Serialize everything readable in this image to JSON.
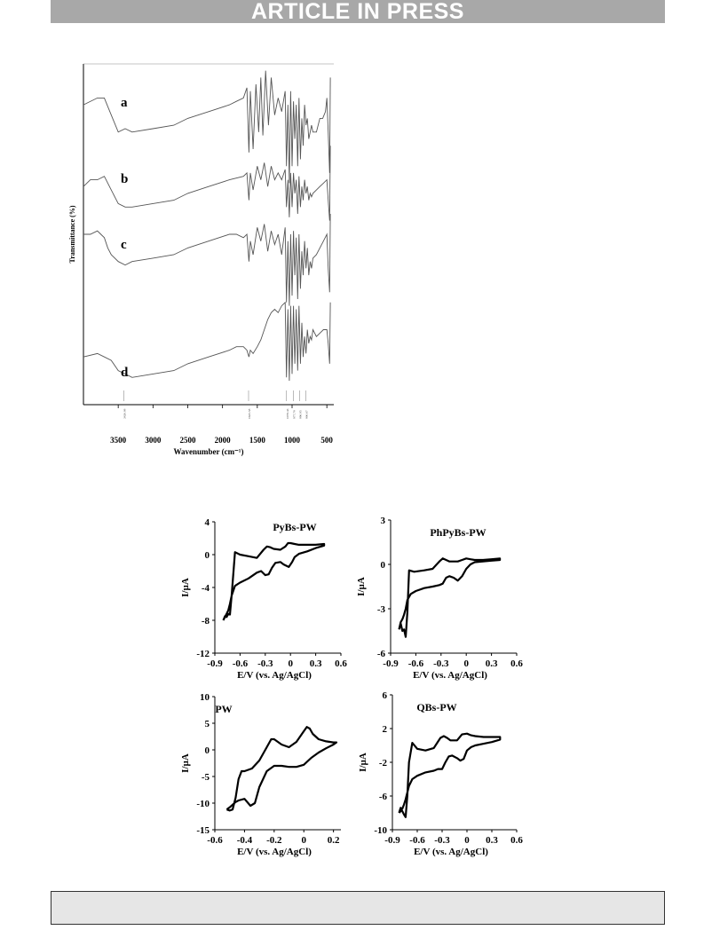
{
  "header": {
    "banner": "ARTICLE IN PRESS"
  },
  "chart_data": [
    {
      "type": "line",
      "ylabel": "Transmittance (%)",
      "xlabel": "Wavenumber (cm⁻¹)",
      "xlim": [
        4000,
        400
      ],
      "xticks": [
        3500,
        3000,
        2500,
        2000,
        1500,
        1000,
        500
      ],
      "series": [
        {
          "name": "a",
          "x": [
            4000,
            3800,
            3700,
            3600,
            3500,
            3400,
            3300,
            3000,
            2700,
            2500,
            2200,
            1900,
            1800,
            1700,
            1650,
            1620,
            1600,
            1560,
            1520,
            1480,
            1450,
            1420,
            1380,
            1340,
            1300,
            1250,
            1200,
            1150,
            1100,
            1080,
            1060,
            1040,
            1020,
            1000,
            980,
            960,
            940,
            920,
            900,
            880,
            860,
            840,
            820,
            800,
            780,
            760,
            740,
            720,
            700,
            650,
            600,
            560,
            520,
            500,
            480,
            460,
            450
          ],
          "y": [
            88,
            90,
            90,
            85,
            80,
            81,
            80,
            81,
            82,
            84,
            86,
            88,
            89,
            90,
            93,
            74,
            92,
            75,
            94,
            80,
            96,
            79,
            98,
            82,
            96,
            85,
            90,
            86,
            92,
            70,
            88,
            65,
            92,
            70,
            89,
            78,
            88,
            70,
            90,
            72,
            84,
            76,
            88,
            82,
            84,
            78,
            80,
            82,
            80,
            80,
            84,
            84,
            86,
            90,
            80,
            68,
            96
          ]
        },
        {
          "name": "b",
          "x": [
            4000,
            3900,
            3800,
            3700,
            3600,
            3500,
            3400,
            3300,
            3000,
            2700,
            2500,
            2200,
            1900,
            1700,
            1650,
            1620,
            1600,
            1560,
            1500,
            1450,
            1400,
            1350,
            1300,
            1250,
            1200,
            1150,
            1100,
            1080,
            1060,
            1040,
            1020,
            1000,
            980,
            960,
            940,
            920,
            900,
            880,
            860,
            840,
            820,
            800,
            780,
            760,
            740,
            720,
            700,
            650,
            600,
            550,
            500,
            480,
            460,
            450
          ],
          "y": [
            64,
            66,
            66,
            67,
            63,
            59,
            58,
            58,
            59,
            60,
            62,
            64,
            66,
            67,
            68,
            60,
            68,
            63,
            70,
            66,
            71,
            64,
            70,
            66,
            68,
            66,
            69,
            58,
            66,
            55,
            68,
            58,
            68,
            62,
            66,
            56,
            67,
            58,
            64,
            60,
            66,
            62,
            64,
            60,
            62,
            61,
            62,
            63,
            64,
            65,
            66,
            60,
            54,
            76
          ]
        },
        {
          "name": "c",
          "x": [
            4000,
            3900,
            3800,
            3750,
            3700,
            3650,
            3600,
            3500,
            3400,
            3300,
            3000,
            2700,
            2500,
            2200,
            1900,
            1800,
            1700,
            1650,
            1620,
            1600,
            1560,
            1500,
            1450,
            1400,
            1350,
            1300,
            1250,
            1200,
            1150,
            1100,
            1080,
            1060,
            1040,
            1020,
            1000,
            980,
            960,
            940,
            920,
            900,
            880,
            860,
            840,
            820,
            800,
            780,
            760,
            740,
            720,
            700,
            650,
            600,
            550,
            500,
            480,
            460,
            450
          ],
          "y": [
            50,
            50,
            51,
            50,
            49,
            46,
            44,
            42,
            41,
            42,
            43,
            44,
            46,
            48,
            50,
            50,
            49,
            50,
            42,
            48,
            44,
            52,
            48,
            53,
            45,
            51,
            47,
            50,
            44,
            52,
            30,
            48,
            29,
            50,
            32,
            51,
            38,
            49,
            31,
            50,
            34,
            45,
            38,
            48,
            40,
            46,
            38,
            42,
            40,
            43,
            44,
            46,
            48,
            50,
            40,
            33,
            56
          ]
        },
        {
          "name": "d",
          "x": [
            4000,
            3800,
            3700,
            3600,
            3500,
            3400,
            3300,
            3000,
            2700,
            2500,
            2200,
            1900,
            1800,
            1750,
            1700,
            1650,
            1620,
            1600,
            1560,
            1500,
            1450,
            1400,
            1350,
            1300,
            1250,
            1200,
            1150,
            1100,
            1080,
            1060,
            1040,
            1020,
            1000,
            980,
            960,
            940,
            920,
            900,
            880,
            860,
            840,
            820,
            800,
            780,
            760,
            740,
            720,
            700,
            650,
            600,
            550,
            500,
            480,
            460,
            450
          ],
          "y": [
            14,
            15,
            14,
            13,
            10,
            9,
            8,
            9,
            10,
            12,
            14,
            16,
            17,
            17,
            17,
            16,
            14,
            16,
            15,
            17,
            19,
            22,
            25,
            27,
            28,
            27,
            29,
            30,
            8,
            28,
            7,
            29,
            9,
            29,
            12,
            28,
            10,
            29,
            12,
            24,
            14,
            20,
            15,
            22,
            18,
            20,
            19,
            22,
            20,
            21,
            22,
            22,
            18,
            12,
            30
          ]
        }
      ],
      "annotations": [
        "3420.88",
        "1625.58",
        "1079.43",
        "977.78",
        "890.95",
        "800.67"
      ],
      "labels": [
        "a",
        "b",
        "c",
        "d"
      ]
    },
    {
      "type": "line",
      "title": "PyBs-PW",
      "xlabel": "E/V (vs. Ag/AgCl)",
      "ylabel": "I/µA",
      "xlim": [
        -0.9,
        0.6
      ],
      "ylim": [
        -12,
        4
      ],
      "xticks": [
        "-0.9",
        "-0.6",
        "-0.3",
        "0",
        "0.3",
        "0.6"
      ],
      "yticks": [
        "4",
        "0",
        "-4",
        "-8",
        "-12"
      ],
      "x": [
        -0.8,
        -0.78,
        -0.76,
        -0.74,
        -0.72,
        -0.7,
        -0.66,
        -0.6,
        -0.5,
        -0.4,
        -0.32,
        -0.28,
        -0.24,
        -0.2,
        -0.12,
        -0.06,
        -0.03,
        0.0,
        0.05,
        0.1,
        0.2,
        0.3,
        0.4,
        0.4,
        0.3,
        0.2,
        0.1,
        0.05,
        0.02,
        -0.02,
        -0.08,
        -0.12,
        -0.18,
        -0.22,
        -0.26,
        -0.3,
        -0.35,
        -0.4,
        -0.5,
        -0.6,
        -0.66,
        -0.7,
        -0.72,
        -0.74,
        -0.76,
        -0.78,
        -0.8
      ],
      "y": [
        -8.0,
        -7.5,
        -7.6,
        -7.2,
        -7.3,
        -5.0,
        0.3,
        0.0,
        -0.2,
        -0.4,
        0.6,
        1.0,
        0.9,
        0.7,
        0.6,
        1.0,
        1.4,
        1.4,
        1.3,
        1.2,
        1.2,
        1.2,
        1.3,
        1.1,
        0.8,
        0.4,
        0.1,
        -0.3,
        -0.9,
        -1.5,
        -1.2,
        -0.9,
        -1.0,
        -1.6,
        -2.4,
        -2.5,
        -2.0,
        -2.2,
        -2.9,
        -3.4,
        -3.8,
        -5.0,
        -6.0,
        -6.8,
        -7.2,
        -7.6,
        -8.0
      ]
    },
    {
      "type": "line",
      "title": "PhPyBs-PW",
      "xlabel": "E/V (vs. Ag/AgCl)",
      "ylabel": "I/µA",
      "xlim": [
        -0.9,
        0.6
      ],
      "ylim": [
        -6,
        3
      ],
      "xticks": [
        "-0.9",
        "-0.6",
        "-0.3",
        "0",
        "0.3",
        "0.6"
      ],
      "yticks": [
        "3",
        "0",
        "-3",
        "-6"
      ],
      "x": [
        -0.8,
        -0.78,
        -0.76,
        -0.74,
        -0.72,
        -0.7,
        -0.68,
        -0.62,
        -0.5,
        -0.4,
        -0.32,
        -0.28,
        -0.24,
        -0.2,
        -0.1,
        -0.05,
        0.0,
        0.05,
        0.1,
        0.2,
        0.3,
        0.4,
        0.4,
        0.3,
        0.2,
        0.1,
        0.05,
        0.0,
        -0.05,
        -0.1,
        -0.15,
        -0.2,
        -0.24,
        -0.28,
        -0.32,
        -0.4,
        -0.5,
        -0.6,
        -0.66,
        -0.7,
        -0.72,
        -0.74,
        -0.76,
        -0.78,
        -0.8
      ],
      "y": [
        -4.4,
        -4.0,
        -4.5,
        -4.4,
        -4.9,
        -3.2,
        -0.4,
        -0.5,
        -0.4,
        -0.3,
        0.2,
        0.4,
        0.3,
        0.2,
        0.2,
        0.3,
        0.4,
        0.35,
        0.3,
        0.3,
        0.35,
        0.4,
        0.3,
        0.25,
        0.2,
        0.15,
        0.0,
        -0.3,
        -0.8,
        -1.1,
        -0.9,
        -0.8,
        -0.9,
        -1.3,
        -1.4,
        -1.5,
        -1.6,
        -1.8,
        -2.0,
        -2.4,
        -3.0,
        -3.4,
        -3.7,
        -3.9,
        -4.4
      ]
    },
    {
      "type": "line",
      "title": "PW",
      "xlabel": "E/V (vs. Ag/AgCl)",
      "ylabel": "I/µA",
      "xlim": [
        -0.6,
        0.25
      ],
      "ylim": [
        -15,
        10
      ],
      "xticks": [
        "-0.6",
        "-0.4",
        "-0.2",
        "0",
        "0.2"
      ],
      "yticks": [
        "10",
        "5",
        "0",
        "-5",
        "-10",
        "-15"
      ],
      "x": [
        -0.52,
        -0.5,
        -0.48,
        -0.46,
        -0.44,
        -0.42,
        -0.4,
        -0.35,
        -0.3,
        -0.25,
        -0.22,
        -0.2,
        -0.15,
        -0.1,
        -0.05,
        0.0,
        0.02,
        0.04,
        0.06,
        0.1,
        0.15,
        0.2,
        0.22,
        0.2,
        0.15,
        0.1,
        0.05,
        0.0,
        -0.05,
        -0.1,
        -0.15,
        -0.2,
        -0.25,
        -0.3,
        -0.33,
        -0.36,
        -0.4,
        -0.44,
        -0.46,
        -0.48,
        -0.5,
        -0.52
      ],
      "y": [
        -11.2,
        -11.4,
        -11.2,
        -9.0,
        -5.5,
        -4.0,
        -4.0,
        -3.5,
        -2.0,
        0.5,
        2.0,
        2.0,
        1.0,
        0.5,
        1.5,
        3.5,
        4.3,
        4.0,
        3.0,
        2.0,
        1.6,
        1.4,
        1.4,
        1.0,
        0.3,
        -0.5,
        -1.5,
        -2.8,
        -3.2,
        -3.2,
        -3.0,
        -3.0,
        -4.0,
        -7.0,
        -10.0,
        -10.5,
        -9.2,
        -9.5,
        -9.8,
        -10.3,
        -10.8,
        -11.2
      ]
    },
    {
      "type": "line",
      "title": "QBs-PW",
      "xlabel": "E/V (vs. Ag/AgCl)",
      "ylabel": "I/µA",
      "xlim": [
        -0.9,
        0.6
      ],
      "ylim": [
        -10,
        6
      ],
      "xticks": [
        "-0.9",
        "-0.6",
        "-0.3",
        "0",
        "0.3",
        "0.6"
      ],
      "yticks": [
        "6",
        "2",
        "-2",
        "-6",
        "-10"
      ],
      "x": [
        -0.82,
        -0.8,
        -0.78,
        -0.76,
        -0.74,
        -0.72,
        -0.7,
        -0.66,
        -0.6,
        -0.5,
        -0.4,
        -0.32,
        -0.28,
        -0.24,
        -0.2,
        -0.12,
        -0.06,
        0.0,
        0.05,
        0.1,
        0.2,
        0.3,
        0.4,
        0.4,
        0.3,
        0.2,
        0.1,
        0.05,
        0.0,
        -0.04,
        -0.08,
        -0.12,
        -0.18,
        -0.22,
        -0.26,
        -0.3,
        -0.35,
        -0.4,
        -0.5,
        -0.6,
        -0.66,
        -0.7,
        -0.72,
        -0.74,
        -0.76,
        -0.78,
        -0.8,
        -0.82
      ],
      "y": [
        -8.0,
        -7.4,
        -7.8,
        -8.2,
        -8.5,
        -6.0,
        -2.0,
        0.3,
        -0.4,
        -0.6,
        -0.3,
        0.9,
        1.1,
        0.9,
        0.6,
        0.6,
        1.3,
        1.4,
        1.2,
        1.1,
        1.0,
        1.0,
        1.0,
        0.7,
        0.4,
        0.2,
        0.0,
        -0.2,
        -0.6,
        -1.6,
        -1.8,
        -1.5,
        -1.2,
        -1.3,
        -2.0,
        -2.8,
        -2.8,
        -3.0,
        -3.2,
        -3.6,
        -4.0,
        -4.8,
        -5.6,
        -6.4,
        -7.0,
        -7.5,
        -7.8,
        -8.0
      ]
    }
  ]
}
